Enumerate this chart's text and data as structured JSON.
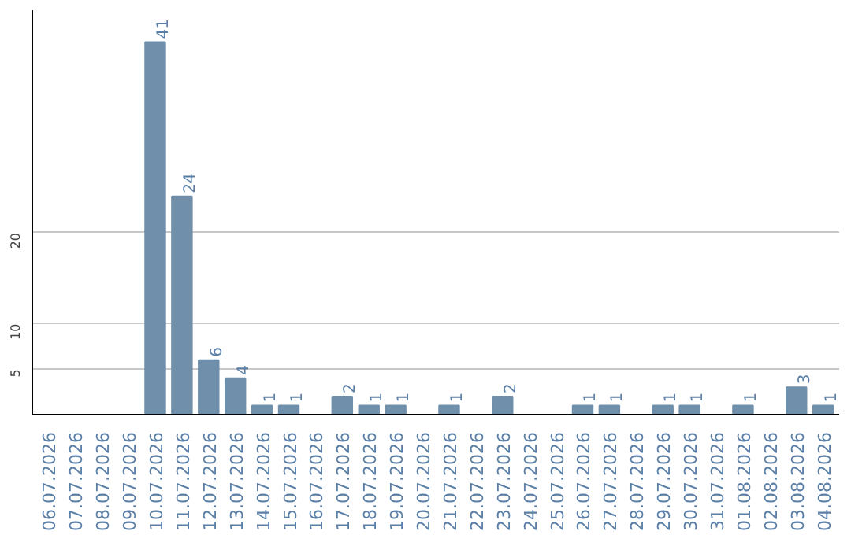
{
  "chart_data": {
    "type": "bar",
    "categories": [
      "06.07.2026",
      "07.07.2026",
      "08.07.2026",
      "09.07.2026",
      "10.07.2026",
      "11.07.2026",
      "12.07.2026",
      "13.07.2026",
      "14.07.2026",
      "15.07.2026",
      "16.07.2026",
      "17.07.2026",
      "18.07.2026",
      "19.07.2026",
      "20.07.2026",
      "21.07.2026",
      "22.07.2026",
      "23.07.2026",
      "24.07.2026",
      "25.07.2026",
      "26.07.2026",
      "27.07.2026",
      "28.07.2026",
      "29.07.2026",
      "30.07.2026",
      "31.07.2026",
      "01.08.2026",
      "02.08.2026",
      "03.08.2026",
      "04.08.2026"
    ],
    "values": [
      0,
      0,
      0,
      0,
      41,
      24,
      6,
      4,
      1,
      1,
      0,
      2,
      1,
      1,
      0,
      1,
      0,
      2,
      0,
      0,
      1,
      1,
      0,
      1,
      1,
      0,
      1,
      0,
      3,
      1
    ],
    "value_labels": [
      null,
      null,
      null,
      null,
      "41",
      "24",
      "6",
      "4",
      "1",
      "1",
      null,
      "2",
      "1",
      "1",
      null,
      "1",
      null,
      "2",
      null,
      null,
      "1",
      "1",
      null,
      "1",
      "1",
      null,
      "1",
      null,
      "3",
      "1"
    ],
    "color": "#6f8fab",
    "ylim": [
      0,
      44.5
    ],
    "yticks": [
      5,
      10,
      20
    ],
    "grid": "y"
  }
}
